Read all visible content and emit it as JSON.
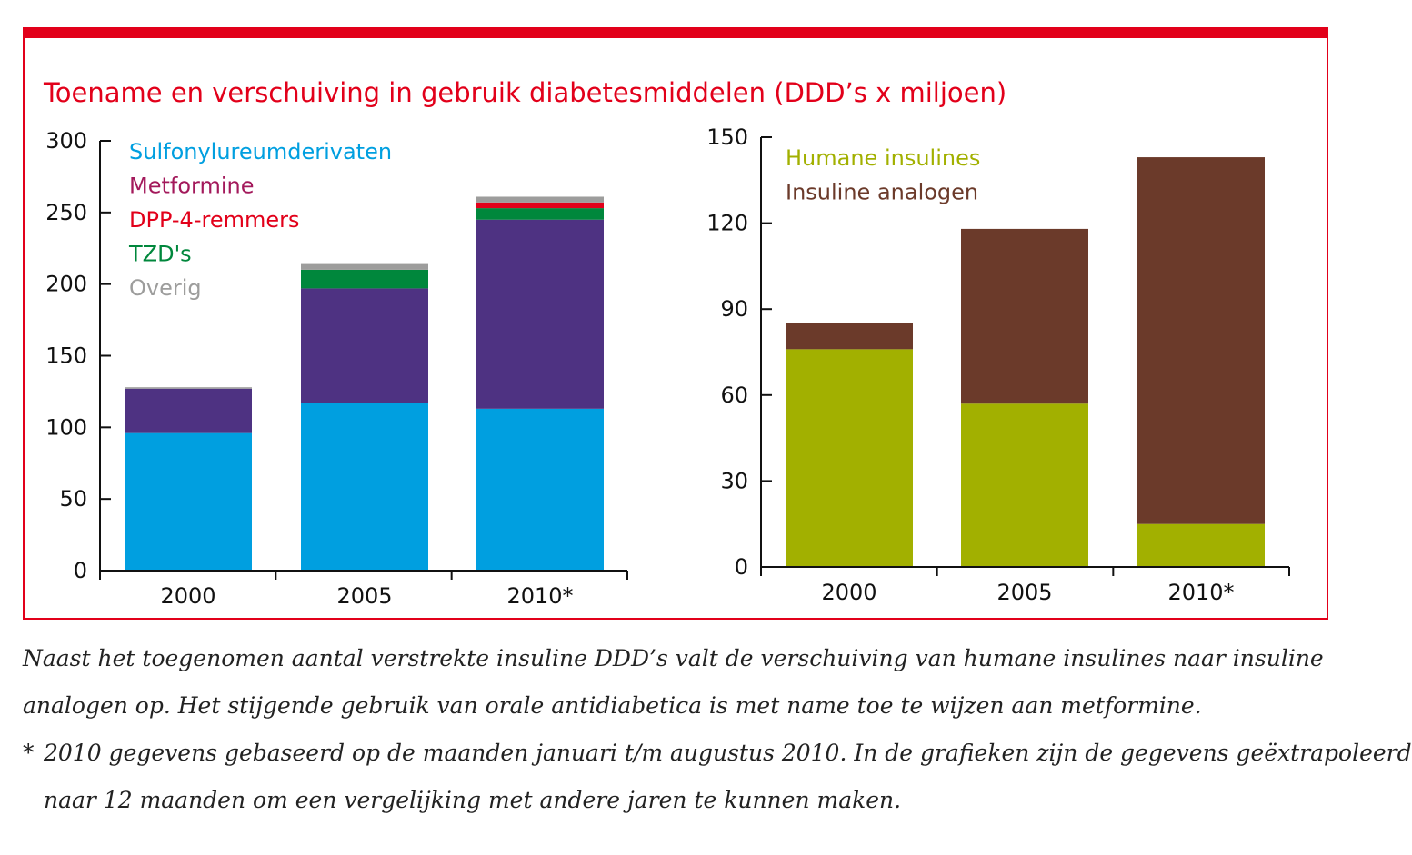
{
  "title": "Toename en verschuiving in gebruik diabetesmiddelen (DDD’s x miljoen)",
  "colors": {
    "frame": "#E2001A",
    "title": "#E2001A"
  },
  "chart_data": [
    {
      "type": "bar",
      "stacked": true,
      "categories": [
        "2000",
        "2005",
        "2010*"
      ],
      "ylim": [
        0,
        300
      ],
      "yticks": [
        0,
        50,
        100,
        150,
        200,
        250,
        300
      ],
      "legend_placement": "top-left",
      "grid": false,
      "series": [
        {
          "name": "Sulfonylureumderivaten",
          "values": [
            96,
            117,
            113
          ],
          "color": "#009FE0",
          "label_color": "#009FE0"
        },
        {
          "name": "Metformine",
          "values": [
            31,
            80,
            132
          ],
          "color": "#4E3282",
          "label_color": "#A3195B"
        },
        {
          "name": "TZD's",
          "values": [
            0,
            13,
            8
          ],
          "color": "#00873C",
          "label_color": "#00873C"
        },
        {
          "name": "DPP-4-remmers",
          "values": [
            0,
            0,
            4
          ],
          "color": "#E2001A",
          "label_color": "#E2001A"
        },
        {
          "name": "Overig",
          "values": [
            1,
            4,
            4
          ],
          "color": "#9D9D9C",
          "label_color": "#9D9D9C"
        }
      ],
      "legend_order": [
        "Sulfonylureumderivaten",
        "Metformine",
        "DPP-4-remmers",
        "TZD's",
        "Overig"
      ]
    },
    {
      "type": "bar",
      "stacked": true,
      "categories": [
        "2000",
        "2005",
        "2010*"
      ],
      "ylim": [
        0,
        150
      ],
      "yticks": [
        0,
        30,
        60,
        90,
        120,
        150
      ],
      "legend_placement": "top-left",
      "grid": false,
      "series": [
        {
          "name": "Humane insulines",
          "values": [
            76,
            57,
            15
          ],
          "color": "#A2B000",
          "label_color": "#A2B000"
        },
        {
          "name": "Insuline analogen",
          "values": [
            9,
            61,
            128
          ],
          "color": "#6B3A2A",
          "label_color": "#6B3A2A"
        }
      ],
      "legend_order": [
        "Humane insulines",
        "Insuline analogen"
      ]
    }
  ],
  "caption": {
    "line1": "Naast het toegenomen aantal verstrekte insuline DDD’s valt de verschuiving van humane insulines naar insuline",
    "line2": "analogen op. Het stijgende gebruik van orale antidiabetica is met name toe te wijzen aan metformine.",
    "footnote_mark": "*",
    "footnote_line1": "2010 gegevens gebaseerd op de maanden januari t/m augustus 2010. In de grafieken zijn de gegevens geëxtrapoleerd",
    "footnote_line2": "naar 12 maanden om een vergelijking met andere jaren te kunnen maken."
  }
}
